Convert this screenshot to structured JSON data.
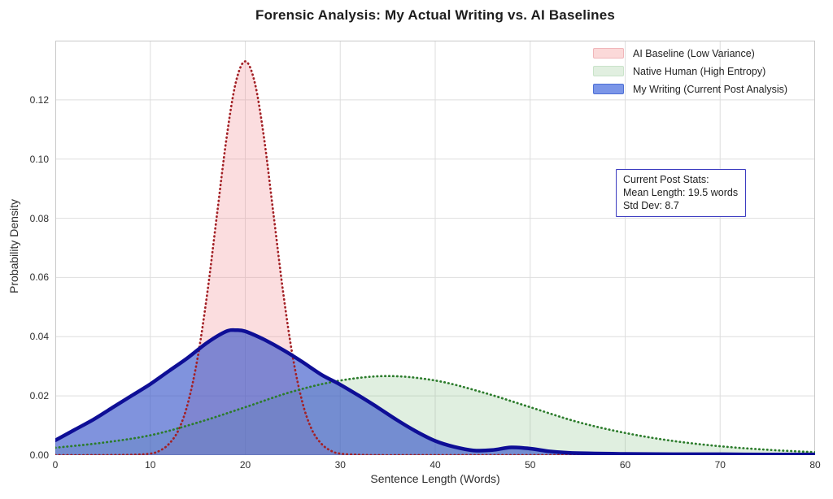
{
  "title": "Forensic Analysis: My Actual Writing vs. AI Baselines",
  "chart_data": {
    "type": "area",
    "subtype": "density-curves",
    "title": "Forensic Analysis: My Actual Writing vs. AI Baselines",
    "xlabel": "Sentence Length (Words)",
    "ylabel": "Probability Density",
    "xlim": [
      0,
      80
    ],
    "ylim": [
      0,
      0.14
    ],
    "grid": "both",
    "grid_color": "#dedede",
    "spine_color": "#c8c8c8",
    "legend_position": "upper-right",
    "xticks": {
      "values": [
        0,
        10,
        20,
        30,
        40,
        50,
        60,
        70,
        80
      ],
      "labels": [
        "0",
        "10",
        "20",
        "30",
        "40",
        "50",
        "60",
        "70",
        "80"
      ]
    },
    "yticks": {
      "values": [
        0.0,
        0.02,
        0.04,
        0.06,
        0.08,
        0.1,
        0.12
      ],
      "labels": [
        "0.00",
        "0.02",
        "0.04",
        "0.06",
        "0.08",
        "0.10",
        "0.12"
      ]
    },
    "series": [
      {
        "name": "AI Baseline (Low Variance)",
        "line_style": "dotted",
        "line_color": "#a32126",
        "fill_color": "rgba(242,142,150,0.30)",
        "swatch_fill": "#fbd9d9",
        "swatch_edge": "#f0b6ba",
        "approx_mean": 20,
        "approx_std": 3,
        "peak_density": 0.133,
        "x": [
          0,
          4,
          8,
          10,
          11,
          12,
          13,
          14,
          15,
          16,
          17,
          18,
          19,
          20,
          21,
          22,
          23,
          24,
          25,
          26,
          27,
          28,
          29,
          30,
          32,
          34,
          38,
          45,
          55,
          65,
          80
        ],
        "y": [
          0,
          0,
          0.0001,
          0.0005,
          0.0015,
          0.0039,
          0.0087,
          0.018,
          0.0332,
          0.0547,
          0.0807,
          0.1065,
          0.1258,
          0.133,
          0.1258,
          0.1065,
          0.0807,
          0.0547,
          0.0332,
          0.018,
          0.0087,
          0.0039,
          0.0015,
          0.0005,
          0.0001,
          0,
          0,
          0,
          0,
          0,
          0
        ]
      },
      {
        "name": "Native Human (High Entropy)",
        "line_style": "dotted",
        "line_color": "#2c7c2c",
        "fill_color": "rgba(130,190,130,0.25)",
        "swatch_fill": "#e1efe0",
        "swatch_edge": "#c9e3c9",
        "approx_mean": 35,
        "approx_std": 15,
        "peak_density": 0.0267,
        "x": [
          0,
          5,
          10,
          15,
          20,
          25,
          30,
          35,
          40,
          45,
          50,
          55,
          60,
          65,
          70,
          75,
          80
        ],
        "y": [
          0.0025,
          0.0042,
          0.0067,
          0.011,
          0.0162,
          0.0215,
          0.0252,
          0.0267,
          0.0252,
          0.0212,
          0.0162,
          0.0112,
          0.0075,
          0.0048,
          0.003,
          0.0018,
          0.001
        ]
      },
      {
        "name": "My Writing (Current Post Analysis)",
        "line_style": "solid",
        "line_color": "#0e0e96",
        "fill_color": "rgba(50,80,200,0.62)",
        "swatch_fill": "#7b96e8",
        "swatch_edge": "#4e6fd4",
        "approx_mean": 19.5,
        "approx_std": 8.7,
        "peak_density": 0.0422,
        "x": [
          0,
          2,
          4,
          6,
          8,
          10,
          12,
          14,
          16,
          18,
          19,
          20,
          22,
          24,
          26,
          28,
          30,
          32,
          34,
          36,
          38,
          40,
          42,
          44,
          46,
          48,
          50,
          52,
          54,
          56,
          60,
          65,
          70,
          75,
          80
        ],
        "y": [
          0.005,
          0.0085,
          0.012,
          0.016,
          0.02,
          0.024,
          0.0285,
          0.033,
          0.038,
          0.0418,
          0.0422,
          0.0418,
          0.039,
          0.0355,
          0.0315,
          0.0272,
          0.0238,
          0.02,
          0.016,
          0.0118,
          0.008,
          0.0048,
          0.0028,
          0.0016,
          0.0017,
          0.0026,
          0.0022,
          0.0013,
          0.0008,
          0.0006,
          0.0004,
          0.0003,
          0.0003,
          0.0002,
          0.0002
        ]
      }
    ],
    "annotation": {
      "lines": [
        "Current Post Stats:",
        "Mean Length: 19.5 words",
        "Std Dev: 8.7"
      ],
      "border_color": "#3c3cc0"
    }
  }
}
